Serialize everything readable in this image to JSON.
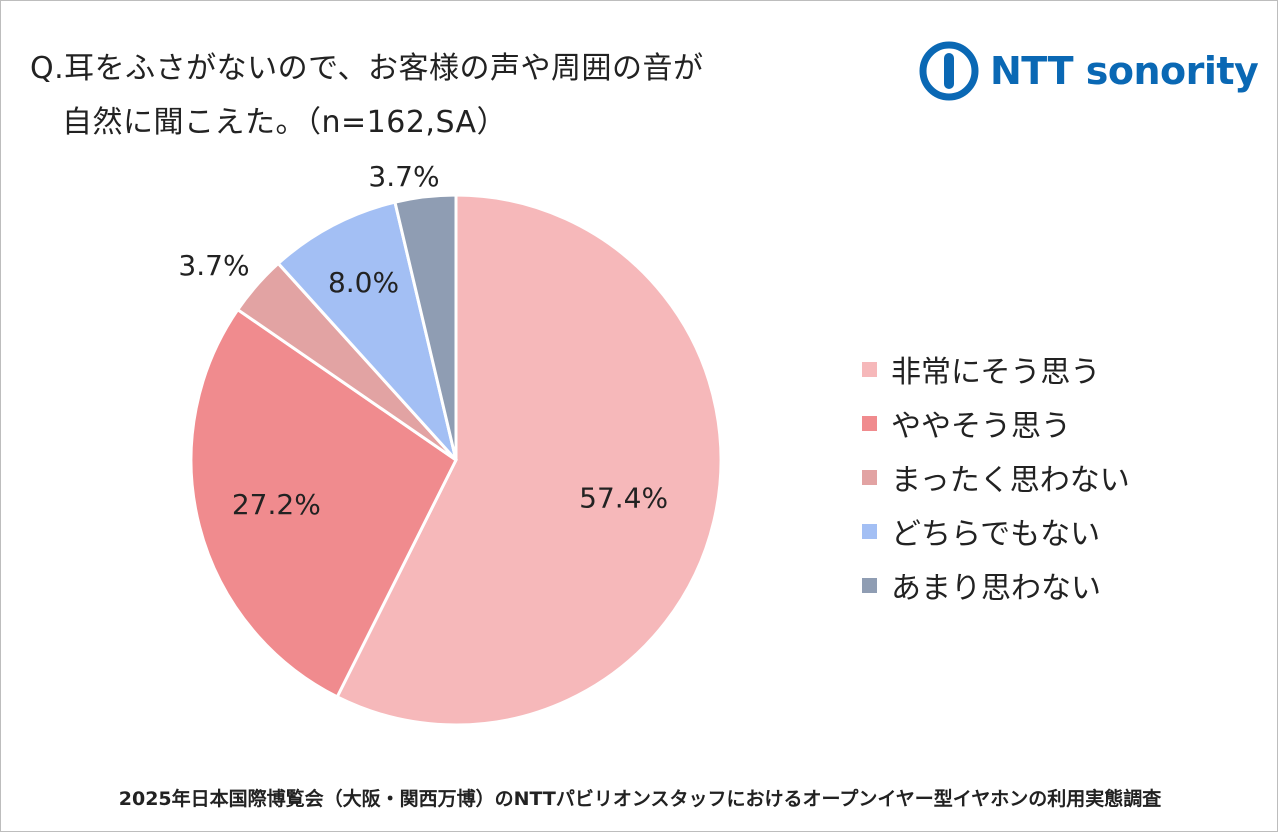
{
  "header": {
    "question_line1": "Q.耳をふさがないので、お客様の声や周囲の音が",
    "question_line2": "自然に聞こえた。（n=162,SA）"
  },
  "logo": {
    "text": "NTT sonority",
    "icon": "ntt-logo-icon",
    "color": "#0a68b4"
  },
  "footer": {
    "text": "2025年日本国際博覧会（大阪・関西万博）のNTTパビリオンスタッフにおけるオープンイヤー型イヤホンの利用実態調査"
  },
  "chart_data": {
    "type": "pie",
    "title": "Q.耳をふさがないので、お客様の声や周囲の音が 自然に聞こえた。（n=162,SA）",
    "start": "top",
    "direction": "clockwise",
    "legend_position": "right",
    "slices": [
      {
        "label": "非常にそう思う",
        "value": 57.4,
        "display": "57.4%",
        "color": "#f6b8ba"
      },
      {
        "label": "ややそう思う",
        "value": 27.2,
        "display": "27.2%",
        "color": "#f08b8e"
      },
      {
        "label": "まったく思わない",
        "value": 3.7,
        "display": "3.7%",
        "color": "#e2a3a3"
      },
      {
        "label": "どちらでもない",
        "value": 8.0,
        "display": "8.0%",
        "color": "#a3bff4"
      },
      {
        "label": "あまり思わない",
        "value": 3.7,
        "display": "3.7%",
        "color": "#8f9db3"
      }
    ]
  }
}
